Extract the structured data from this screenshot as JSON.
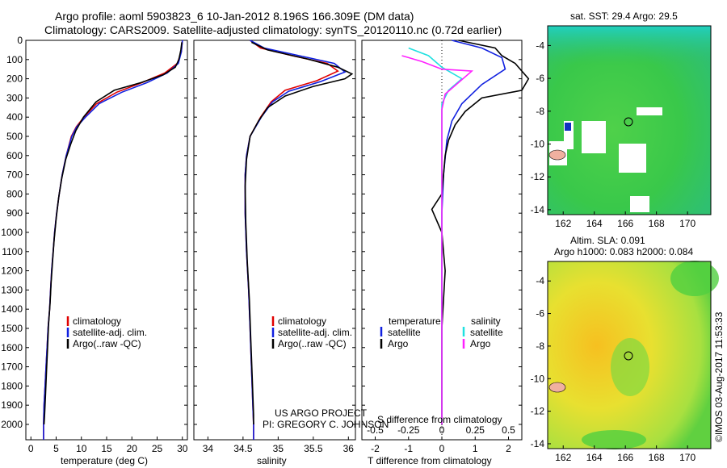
{
  "header": {
    "line1": "Argo profile: aoml 5903823_6 10-Jan-2012 8.196S 166.309E (DM data)",
    "line2": "Climatology: CARS2009. Satellite-adjusted climatology: synTS_20120110.nc (0.72d earlier)"
  },
  "legend_main": [
    "climatology",
    "satellite-adj. clim.",
    "Argo(..raw -QC)"
  ],
  "legend_diff": {
    "temperature_head": "temperature",
    "salinity_head": "salinity",
    "satellite": "satellite",
    "argo": "Argo"
  },
  "credit": {
    "line1": "US ARGO PROJECT",
    "line2": "PI: GREGORY C. JOHNSON"
  },
  "map_sst": {
    "title": "sat. SST: 29.4 Argo: 29.5"
  },
  "map_sla": {
    "title1": "Altim. SLA: 0.091",
    "title2": "Argo h1000: 0.083 h2000: 0.084"
  },
  "stamp": "©IMOS 03-Aug-2017 11:53:33",
  "colors": {
    "climatology": "#e00000",
    "satellite": "#1020e0",
    "argo": "#000000",
    "sal_satellite": "#20e0e0",
    "sal_argo": "#ff20ff"
  },
  "chart_data": [
    {
      "type": "line",
      "xlabel": "temperature (deg C)",
      "ylabel": "",
      "xlim": [
        -1,
        31
      ],
      "ylim": [
        2080,
        0
      ],
      "x_ticks": [
        "0",
        "5",
        "10",
        "15",
        "20",
        "25",
        "30"
      ],
      "y_ticks": [
        "0",
        "100",
        "200",
        "300",
        "400",
        "500",
        "600",
        "700",
        "800",
        "900",
        "1000",
        "1100",
        "1200",
        "1300",
        "1400",
        "1500",
        "1600",
        "1700",
        "1800",
        "1900",
        "2000"
      ],
      "series": [
        {
          "name": "climatology",
          "points": [
            [
              30,
              0
            ],
            [
              29.8,
              60
            ],
            [
              29,
              120
            ],
            [
              26.5,
              170
            ],
            [
              22,
              220
            ],
            [
              17,
              270
            ],
            [
              13,
              330
            ],
            [
              10.5,
              400
            ],
            [
              9,
              450
            ],
            [
              8,
              500
            ],
            [
              7,
              600
            ],
            [
              6.2,
              700
            ],
            [
              5.6,
              800
            ],
            [
              5.1,
              900
            ],
            [
              4.7,
              1000
            ],
            [
              4.4,
              1100
            ],
            [
              4.1,
              1200
            ],
            [
              3.9,
              1300
            ],
            [
              3.7,
              1400
            ],
            [
              3.4,
              1500
            ],
            [
              3.2,
              1600
            ],
            [
              3,
              1700
            ],
            [
              2.8,
              1800
            ],
            [
              2.6,
              1900
            ],
            [
              2.5,
              2000
            ],
            [
              2.5,
              2080
            ]
          ]
        },
        {
          "name": "satellite-adj. clim.",
          "points": [
            [
              30,
              0
            ],
            [
              29.8,
              60
            ],
            [
              29.2,
              120
            ],
            [
              27,
              170
            ],
            [
              23,
              220
            ],
            [
              18,
              270
            ],
            [
              13.5,
              330
            ],
            [
              10.8,
              400
            ],
            [
              9.1,
              450
            ],
            [
              8.1,
              500
            ],
            [
              7,
              600
            ],
            [
              6.2,
              700
            ],
            [
              5.6,
              800
            ],
            [
              5.1,
              900
            ],
            [
              4.7,
              1000
            ],
            [
              4.4,
              1100
            ],
            [
              4.1,
              1200
            ],
            [
              3.9,
              1300
            ],
            [
              3.7,
              1400
            ],
            [
              3.4,
              1500
            ],
            [
              3.2,
              1600
            ],
            [
              3,
              1700
            ],
            [
              2.8,
              1800
            ],
            [
              2.6,
              1900
            ],
            [
              2.5,
              2000
            ],
            [
              2.5,
              2080
            ]
          ]
        },
        {
          "name": "Argo(..raw -QC)",
          "points": [
            [
              29.9,
              10
            ],
            [
              29.7,
              50
            ],
            [
              29.3,
              100
            ],
            [
              28.6,
              140
            ],
            [
              26.2,
              180
            ],
            [
              21.8,
              220
            ],
            [
              16.5,
              260
            ],
            [
              12.9,
              320
            ],
            [
              10.4,
              400
            ],
            [
              8.9,
              470
            ],
            [
              7.9,
              540
            ],
            [
              6.9,
              620
            ],
            [
              6.1,
              720
            ],
            [
              5.5,
              820
            ],
            [
              5,
              930
            ],
            [
              4.6,
              1040
            ],
            [
              4.3,
              1150
            ],
            [
              4,
              1260
            ],
            [
              3.8,
              1370
            ],
            [
              3.5,
              1480
            ],
            [
              3.3,
              1600
            ],
            [
              3.1,
              1720
            ],
            [
              2.9,
              1840
            ],
            [
              2.7,
              1960
            ],
            [
              2.6,
              2000
            ]
          ]
        }
      ]
    },
    {
      "type": "line",
      "xlabel": "salinity",
      "ylabel": "",
      "xlim": [
        33.8,
        36.1
      ],
      "ylim": [
        2080,
        0
      ],
      "x_ticks": [
        "34",
        "34.5",
        "35",
        "35.5",
        "36"
      ],
      "series": [
        {
          "name": "climatology",
          "points": [
            [
              34.6,
              0
            ],
            [
              34.75,
              40
            ],
            [
              35.2,
              80
            ],
            [
              35.7,
              120
            ],
            [
              35.85,
              160
            ],
            [
              35.55,
              210
            ],
            [
              35.1,
              260
            ],
            [
              34.9,
              320
            ],
            [
              34.75,
              400
            ],
            [
              34.6,
              500
            ],
            [
              34.55,
              600
            ],
            [
              34.53,
              700
            ],
            [
              34.53,
              900
            ],
            [
              34.55,
              1100
            ],
            [
              34.58,
              1300
            ],
            [
              34.6,
              1500
            ],
            [
              34.62,
              1700
            ],
            [
              34.64,
              1900
            ],
            [
              34.65,
              2000
            ],
            [
              34.65,
              2080
            ]
          ]
        },
        {
          "name": "satellite-adj. clim.",
          "points": [
            [
              34.6,
              0
            ],
            [
              34.8,
              40
            ],
            [
              35.3,
              80
            ],
            [
              35.8,
              120
            ],
            [
              35.95,
              165
            ],
            [
              35.6,
              215
            ],
            [
              35.15,
              265
            ],
            [
              34.92,
              320
            ],
            [
              34.76,
              400
            ],
            [
              34.6,
              500
            ],
            [
              34.55,
              600
            ],
            [
              34.53,
              700
            ],
            [
              34.53,
              900
            ],
            [
              34.55,
              1100
            ],
            [
              34.58,
              1300
            ],
            [
              34.6,
              1500
            ],
            [
              34.62,
              1700
            ],
            [
              34.64,
              1900
            ],
            [
              34.65,
              2000
            ],
            [
              34.65,
              2080
            ]
          ]
        },
        {
          "name": "Argo(..raw -QC)",
          "points": [
            [
              34.62,
              10
            ],
            [
              34.85,
              50
            ],
            [
              35.45,
              100
            ],
            [
              35.85,
              140
            ],
            [
              36.05,
              175
            ],
            [
              35.95,
              200
            ],
            [
              35.5,
              240
            ],
            [
              35.1,
              290
            ],
            [
              34.85,
              350
            ],
            [
              34.72,
              420
            ],
            [
              34.6,
              500
            ],
            [
              34.55,
              620
            ],
            [
              34.53,
              760
            ],
            [
              34.54,
              950
            ],
            [
              34.56,
              1150
            ],
            [
              34.59,
              1350
            ],
            [
              34.61,
              1550
            ],
            [
              34.63,
              1750
            ],
            [
              34.65,
              1950
            ],
            [
              34.65,
              2000
            ]
          ]
        }
      ]
    },
    {
      "type": "line",
      "xlabel": "T difference from climatology",
      "xlabel_top": "S difference from climatology",
      "xlim": [
        -2.4,
        2.4
      ],
      "ylim": [
        2080,
        0
      ],
      "x_ticks": [
        "-2",
        "-1",
        "0",
        "1",
        "2"
      ],
      "x_ticks_top": [
        "-0.5",
        "-0.25",
        "0",
        "0.25",
        "0.5"
      ],
      "series": [
        {
          "name": "temperature satellite",
          "points": [
            [
              0.3,
              0
            ],
            [
              1.2,
              40
            ],
            [
              1.8,
              90
            ],
            [
              1.9,
              150
            ],
            [
              1.2,
              230
            ],
            [
              0.6,
              330
            ],
            [
              0.3,
              420
            ],
            [
              0.15,
              520
            ],
            [
              0.05,
              700
            ],
            [
              0,
              900
            ],
            [
              0,
              1200
            ],
            [
              0,
              2000
            ]
          ]
        },
        {
          "name": "temperature Argo",
          "points": [
            [
              0.5,
              0
            ],
            [
              1.6,
              40
            ],
            [
              1.8,
              80
            ],
            [
              2.2,
              120
            ],
            [
              2.6,
              200
            ],
            [
              2.4,
              260
            ],
            [
              1.2,
              300
            ],
            [
              0.7,
              370
            ],
            [
              0.4,
              440
            ],
            [
              0.2,
              520
            ],
            [
              0.1,
              600
            ],
            [
              0,
              800
            ],
            [
              -0.3,
              880
            ],
            [
              0,
              1000
            ],
            [
              0.1,
              1200
            ],
            [
              0,
              1500
            ],
            [
              0,
              2000
            ]
          ]
        },
        {
          "name": "salinity satellite",
          "points": [
            [
              -1,
              40
            ],
            [
              -0.4,
              80
            ],
            [
              0,
              140
            ],
            [
              0.6,
              200
            ],
            [
              0.2,
              260
            ],
            [
              0,
              330
            ],
            [
              0,
              500
            ],
            [
              0,
              700
            ],
            [
              0,
              2000
            ]
          ]
        },
        {
          "name": "salinity Argo",
          "points": [
            [
              -1.2,
              80
            ],
            [
              -0.6,
              110
            ],
            [
              0,
              150
            ],
            [
              0.9,
              160
            ],
            [
              0.5,
              220
            ],
            [
              0.1,
              280
            ],
            [
              0,
              360
            ],
            [
              0,
              600
            ],
            [
              0,
              2000
            ]
          ]
        }
      ]
    }
  ],
  "map_axes": {
    "x_ticks": [
      "162",
      "164",
      "166",
      "168",
      "170"
    ],
    "y_ticks": [
      "-4",
      "-6",
      "-8",
      "-10",
      "-12",
      "-14"
    ]
  }
}
